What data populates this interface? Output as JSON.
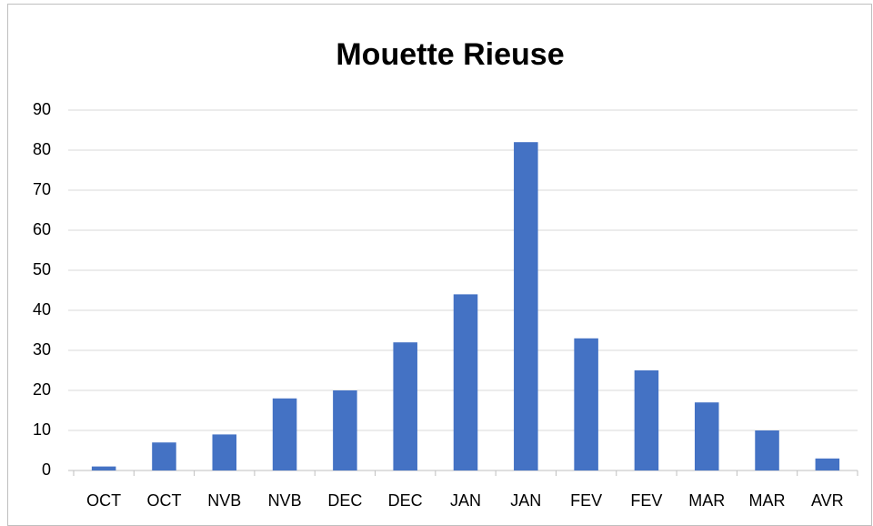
{
  "chart_data": {
    "type": "bar",
    "title": "Mouette Rieuse",
    "categories": [
      "OCT",
      "OCT",
      "NVB",
      "NVB",
      "DEC",
      "DEC",
      "JAN",
      "JAN",
      "FEV",
      "FEV",
      "MAR",
      "MAR",
      "AVR"
    ],
    "values": [
      1,
      7,
      9,
      18,
      20,
      32,
      44,
      82,
      33,
      25,
      17,
      10,
      3
    ],
    "color": "#4472c4",
    "ylim": [
      0,
      90
    ],
    "yticks": [
      0,
      10,
      20,
      30,
      40,
      50,
      60,
      70,
      80,
      90
    ],
    "grid": true
  }
}
